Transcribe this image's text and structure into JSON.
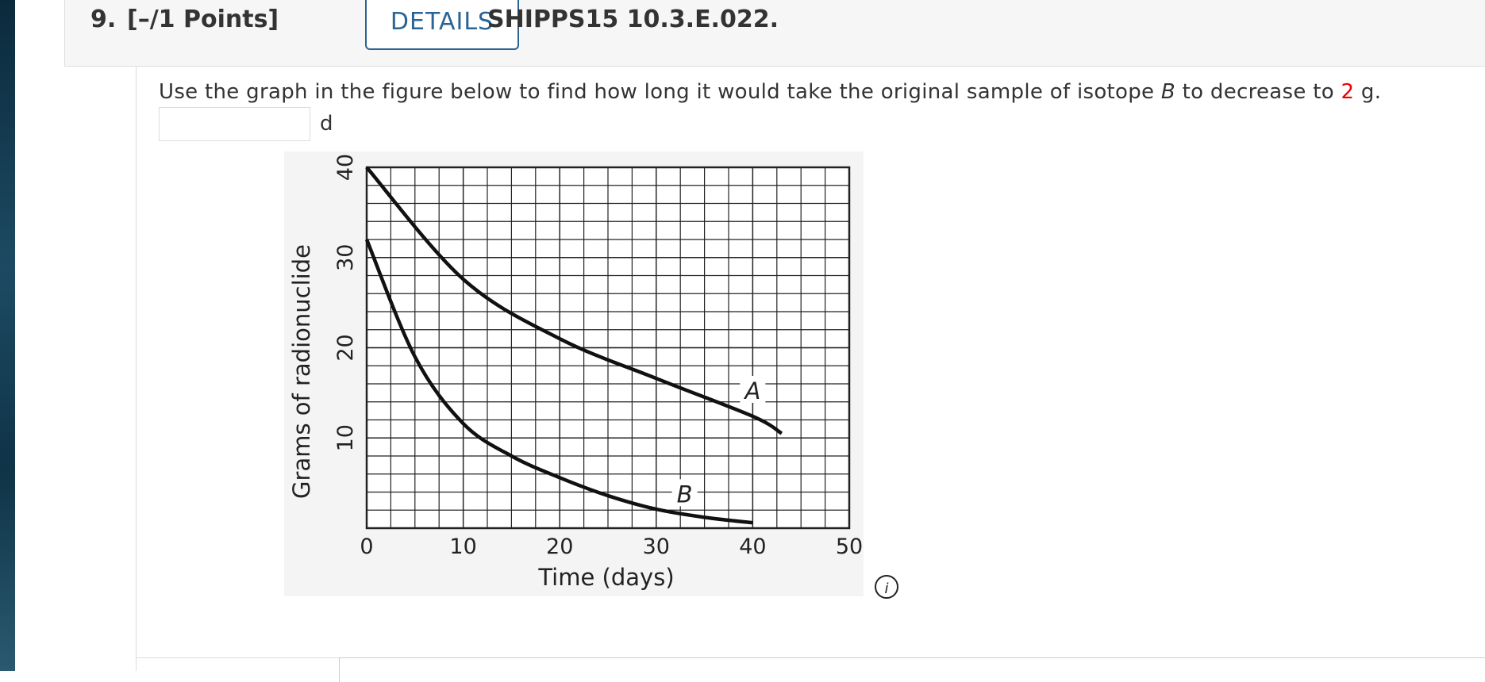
{
  "header": {
    "number": "9.",
    "points": "[–/1 Points]",
    "details": "DETAILS",
    "code": "SHIPPS15 10.3.E.022."
  },
  "question": {
    "text_before": "Use the graph in the figure below to find how long it would take the original sample of isotope ",
    "isotope": "B",
    "text_middle": " to decrease to ",
    "amount": "2",
    "text_after": " g.",
    "unit": "d"
  },
  "chart_data": {
    "type": "line",
    "x_label": "Time (days)",
    "y_label": "Grams of radionuclide",
    "xlim": [
      0,
      50
    ],
    "ylim": [
      0,
      40
    ],
    "xticks": [
      0,
      10,
      20,
      30,
      40,
      50
    ],
    "yticks": [
      10,
      20,
      30,
      40
    ],
    "grid": true,
    "series": [
      {
        "name": "A",
        "color": "#111111",
        "x": [
          0,
          10,
          20,
          30,
          40,
          43
        ],
        "values": [
          40,
          27.6,
          21,
          16.6,
          12.4,
          10.5
        ]
      },
      {
        "name": "B",
        "color": "#111111",
        "x": [
          0,
          5,
          10,
          15,
          20,
          25,
          30,
          35,
          40
        ],
        "values": [
          32,
          19,
          11.6,
          8,
          5.6,
          3.6,
          2.1,
          1.2,
          0.6
        ]
      }
    ]
  }
}
